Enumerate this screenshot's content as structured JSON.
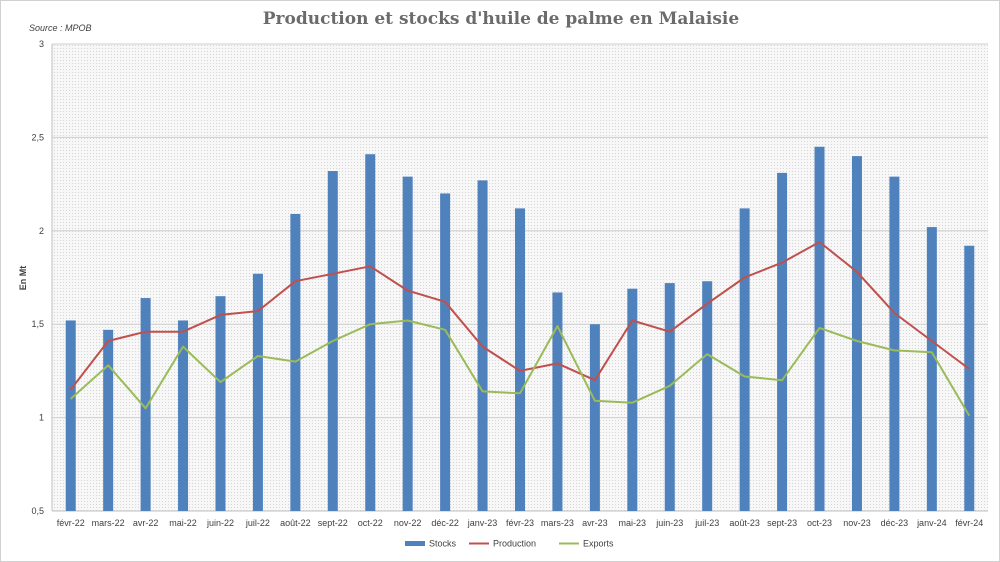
{
  "chart_data": {
    "type": "bar",
    "title": "Production et stocks d'huile de palme en Malaisie",
    "source": "Source : MPOB",
    "ylabel": "En Mt",
    "ylim": [
      0.5,
      3
    ],
    "yticks": [
      "0,5",
      "1",
      "1,5",
      "2",
      "2,5",
      "3"
    ],
    "ytick_values": [
      0.5,
      1,
      1.5,
      2,
      2.5,
      3
    ],
    "grid": true,
    "legend_position": "bottom-center",
    "categories": [
      "févr-22",
      "mars-22",
      "avr-22",
      "mai-22",
      "juin-22",
      "juil-22",
      "août-22",
      "sept-22",
      "oct-22",
      "nov-22",
      "déc-22",
      "janv-23",
      "févr-23",
      "mars-23",
      "avr-23",
      "mai-23",
      "juin-23",
      "juil-23",
      "août-23",
      "sept-23",
      "oct-23",
      "nov-23",
      "déc-23",
      "janv-24",
      "févr-24"
    ],
    "series": [
      {
        "name": "Stocks",
        "kind": "bar",
        "color": "#4f81bd",
        "values": [
          1.52,
          1.47,
          1.64,
          1.52,
          1.65,
          1.77,
          2.09,
          2.32,
          2.41,
          2.29,
          2.2,
          2.27,
          2.12,
          1.67,
          1.5,
          1.69,
          1.72,
          1.73,
          2.12,
          2.31,
          2.45,
          2.4,
          2.29,
          2.02,
          1.92
        ]
      },
      {
        "name": "Production",
        "kind": "line",
        "color": "#c0504d",
        "values": [
          1.15,
          1.41,
          1.46,
          1.46,
          1.55,
          1.57,
          1.73,
          1.77,
          1.81,
          1.68,
          1.62,
          1.38,
          1.25,
          1.29,
          1.2,
          1.52,
          1.46,
          1.61,
          1.75,
          1.83,
          1.94,
          1.78,
          1.56,
          1.41,
          1.26
        ]
      },
      {
        "name": "Exports",
        "kind": "line",
        "color": "#9bbb59",
        "values": [
          1.1,
          1.28,
          1.05,
          1.38,
          1.19,
          1.33,
          1.3,
          1.41,
          1.5,
          1.52,
          1.47,
          1.14,
          1.13,
          1.49,
          1.09,
          1.08,
          1.17,
          1.34,
          1.22,
          1.2,
          1.48,
          1.41,
          1.36,
          1.35,
          1.01
        ]
      }
    ]
  }
}
